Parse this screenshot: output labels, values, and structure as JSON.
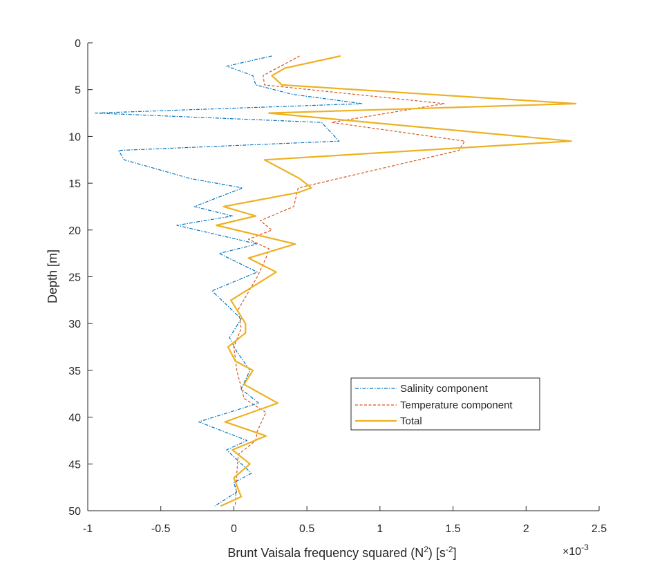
{
  "chart_data": {
    "type": "line",
    "xlabel_main": "Brunt Vaisala frequency squared (N",
    "xlabel_sup1": "2",
    "xlabel_mid": ") [s",
    "xlabel_sup2": "-2",
    "xlabel_end": "]",
    "ylabel": "Depth [m]",
    "x_exponent_base": "×10",
    "x_exponent_power": "-3",
    "xlim": [
      -1,
      2.5
    ],
    "ylim": [
      0,
      50
    ],
    "y_reversed": true,
    "xticks": [
      -1,
      -0.5,
      0,
      0.5,
      1,
      1.5,
      2,
      2.5
    ],
    "xtick_labels": [
      "-1",
      "-0.5",
      "0",
      "0.5",
      "1",
      "1.5",
      "2",
      "2.5"
    ],
    "yticks": [
      0,
      5,
      10,
      15,
      20,
      25,
      30,
      35,
      40,
      45,
      50
    ],
    "ytick_labels": [
      "0",
      "5",
      "10",
      "15",
      "20",
      "25",
      "30",
      "35",
      "40",
      "45",
      "50"
    ],
    "grid": false,
    "legend_position": "lower-right",
    "series": [
      {
        "name": "Salinity component",
        "color": "#0072BD",
        "style": "dashdot",
        "x": [
          0.26,
          -0.05,
          0.13,
          0.15,
          0.4,
          0.88,
          -0.95,
          0.6,
          0.72,
          -0.79,
          -0.75,
          -0.3,
          0.06,
          -0.27,
          -0.01,
          -0.39,
          0.16,
          -0.1,
          0.16,
          -0.15,
          -0.05,
          0.05,
          -0.03,
          0.02,
          0.11,
          0.05,
          0.17,
          -0.24,
          0.09,
          -0.05,
          0.12,
          0.0,
          0.02,
          -0.13
        ],
        "y": [
          1.4,
          2.5,
          3.5,
          4.5,
          5.5,
          6.5,
          7.5,
          8.5,
          10.5,
          11.5,
          12.5,
          14.5,
          15.5,
          17.5,
          18.5,
          19.5,
          21.5,
          22.5,
          24.5,
          26.5,
          28.0,
          29.5,
          31.5,
          33.0,
          35.0,
          37.0,
          38.5,
          40.5,
          42.5,
          43.5,
          46.0,
          47.0,
          48.0,
          49.5
        ]
      },
      {
        "name": "Temperature component",
        "color": "#D95319",
        "style": "dashed",
        "x": [
          0.45,
          0.2,
          0.21,
          1.44,
          0.67,
          1.58,
          1.54,
          0.44,
          0.41,
          0.18,
          0.26,
          0.1,
          0.24,
          0.22,
          0.16,
          0.03,
          0.05,
          0.0,
          0.02,
          0.07,
          0.22,
          0.16,
          0.15,
          0.03,
          0.02,
          0.01
        ],
        "y": [
          1.4,
          3.5,
          4.5,
          6.5,
          8.5,
          10.5,
          11.5,
          15.5,
          17.5,
          19.0,
          20.0,
          21.0,
          22.0,
          23.0,
          25.0,
          28.5,
          30.5,
          32.5,
          35.0,
          38.0,
          39.5,
          41.5,
          42.5,
          44.0,
          46.0,
          49.5
        ]
      },
      {
        "name": "Total",
        "color": "#EDB120",
        "style": "solid",
        "x": [
          0.73,
          0.35,
          0.26,
          0.33,
          2.34,
          0.24,
          2.31,
          0.21,
          0.45,
          0.53,
          0.44,
          -0.07,
          0.15,
          -0.12,
          0.42,
          0.1,
          0.29,
          -0.02,
          0.08,
          0.08,
          -0.04,
          0.01,
          0.13,
          0.07,
          0.3,
          -0.06,
          0.22,
          -0.01,
          0.11,
          0.0,
          0.05,
          -0.09
        ],
        "y": [
          1.4,
          2.7,
          3.5,
          4.5,
          6.5,
          7.5,
          10.5,
          12.5,
          14.5,
          15.5,
          16.0,
          17.5,
          18.5,
          19.5,
          21.5,
          23.0,
          24.5,
          27.5,
          30.0,
          31.0,
          32.5,
          34.0,
          35.0,
          36.5,
          38.5,
          40.5,
          42.0,
          43.5,
          45.0,
          46.5,
          48.5,
          49.5
        ]
      }
    ]
  }
}
